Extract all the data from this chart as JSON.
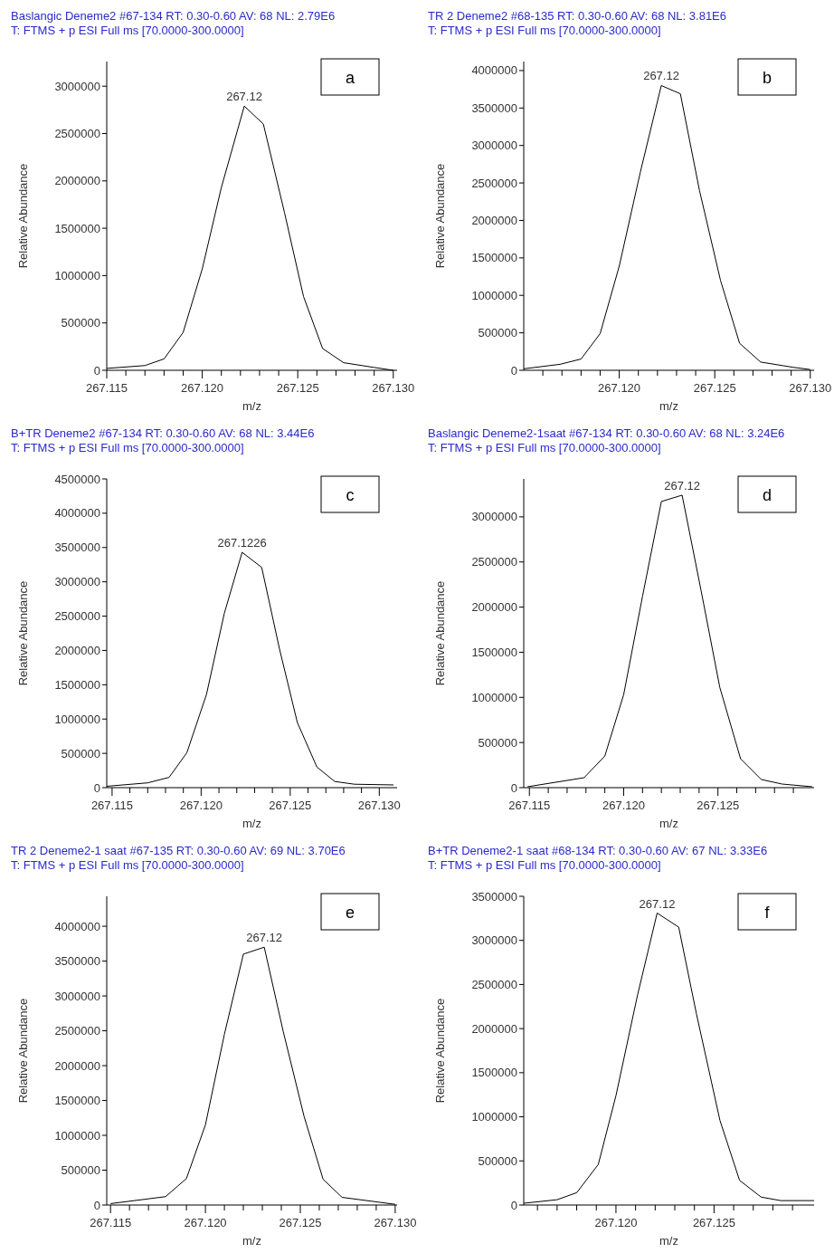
{
  "chart_data": [
    {
      "type": "line",
      "title": "Baslangic Deneme2 #67-134   RT:  0.30-0.60   AV:  68   NL:  2.79E6",
      "subtitle": "T:  FTMS + p ESI Full ms [70.0000-300.0000]",
      "xlabel": "m/z",
      "ylabel": "Relative Abundance",
      "xlim": [
        267.115,
        267.1302
      ],
      "ylim": [
        0,
        3260000
      ],
      "xticks": [
        {
          "value": 267.115,
          "label": "267.115"
        },
        {
          "value": 267.116,
          "label": null
        },
        {
          "value": 267.117,
          "label": null
        },
        {
          "value": 267.118,
          "label": null
        },
        {
          "value": 267.119,
          "label": null
        },
        {
          "value": 267.12,
          "label": "267.120"
        },
        {
          "value": 267.121,
          "label": null
        },
        {
          "value": 267.122,
          "label": null
        },
        {
          "value": 267.123,
          "label": null
        },
        {
          "value": 267.124,
          "label": null
        },
        {
          "value": 267.125,
          "label": "267.125"
        },
        {
          "value": 267.126,
          "label": null
        },
        {
          "value": 267.127,
          "label": null
        },
        {
          "value": 267.128,
          "label": null
        },
        {
          "value": 267.129,
          "label": null
        },
        {
          "value": 267.13,
          "label": "267.130"
        }
      ],
      "yticks": [
        0,
        500000,
        1000000,
        1500000,
        2000000,
        2500000,
        3000000
      ],
      "x": [
        267.115,
        267.117,
        267.118,
        267.119,
        267.12,
        267.121,
        267.1222,
        267.1232,
        267.1243,
        267.1253,
        267.1263,
        267.1274,
        267.129,
        267.13
      ],
      "series": [
        {
          "color": "#000000",
          "values": [
            20000,
            50000,
            120000,
            400000,
            1070000,
            1930000,
            2790000,
            2600000,
            1670000,
            780000,
            230000,
            80000,
            30000,
            0
          ]
        }
      ],
      "annotations": [
        {
          "text": "267.12",
          "x": 267.1222,
          "y": 2790000
        },
        "a"
      ]
    },
    {
      "type": "line",
      "title": "TR 2 Deneme2 #68-135   RT:  0.30-0.60   AV:  68   NL:  3.81E6",
      "subtitle": "T:  FTMS + p ESI Full ms [70.0000-300.0000]",
      "xlabel": "m/z",
      "ylabel": "Relative Abundance",
      "xlim": [
        267.115,
        267.1302
      ],
      "ylim": [
        0,
        4120000
      ],
      "xticks": [
        {
          "value": 267.116,
          "label": null
        },
        {
          "value": 267.117,
          "label": null
        },
        {
          "value": 267.118,
          "label": null
        },
        {
          "value": 267.119,
          "label": null
        },
        {
          "value": 267.12,
          "label": "267.120"
        },
        {
          "value": 267.121,
          "label": null
        },
        {
          "value": 267.122,
          "label": null
        },
        {
          "value": 267.123,
          "label": null
        },
        {
          "value": 267.124,
          "label": null
        },
        {
          "value": 267.125,
          "label": "267.125"
        },
        {
          "value": 267.126,
          "label": null
        },
        {
          "value": 267.127,
          "label": null
        },
        {
          "value": 267.128,
          "label": null
        },
        {
          "value": 267.129,
          "label": null
        },
        {
          "value": 267.13,
          "label": "267.130"
        }
      ],
      "yticks": [
        0,
        500000,
        1000000,
        1500000,
        2000000,
        2500000,
        3000000,
        3500000,
        4000000
      ],
      "x": [
        267.115,
        267.1169,
        267.118,
        267.119,
        267.12,
        267.1211,
        267.1222,
        267.1232,
        267.1242,
        267.1253,
        267.1263,
        267.1274,
        267.1291,
        267.13
      ],
      "series": [
        {
          "color": "#000000",
          "values": [
            20000,
            80000,
            150000,
            490000,
            1390000,
            2640000,
            3800000,
            3690000,
            2400000,
            1200000,
            360000,
            110000,
            40000,
            10000
          ]
        }
      ],
      "annotations": [
        {
          "text": "267.12",
          "x": 267.1222,
          "y": 3800000
        },
        "b"
      ]
    },
    {
      "type": "line",
      "title": "B+TR Deneme2 #67-134   RT:  0.30-0.60   AV:  68   NL:  3.44E6",
      "subtitle": "T:  FTMS + p ESI Full ms [70.0000-300.0000]",
      "xlabel": "m/z",
      "ylabel": "Relative Abundance",
      "xlim": [
        267.1147,
        267.131
      ],
      "ylim": [
        0,
        4500000
      ],
      "xticks": [
        {
          "value": 267.115,
          "label": "267.115"
        },
        {
          "value": 267.116,
          "label": null
        },
        {
          "value": 267.117,
          "label": null
        },
        {
          "value": 267.118,
          "label": null
        },
        {
          "value": 267.119,
          "label": null
        },
        {
          "value": 267.12,
          "label": "267.120"
        },
        {
          "value": 267.121,
          "label": null
        },
        {
          "value": 267.122,
          "label": null
        },
        {
          "value": 267.123,
          "label": null
        },
        {
          "value": 267.124,
          "label": null
        },
        {
          "value": 267.125,
          "label": "267.125"
        },
        {
          "value": 267.126,
          "label": null
        },
        {
          "value": 267.127,
          "label": null
        },
        {
          "value": 267.128,
          "label": null
        },
        {
          "value": 267.129,
          "label": null
        },
        {
          "value": 267.13,
          "label": "267.130"
        }
      ],
      "yticks": [
        0,
        500000,
        1000000,
        1500000,
        2000000,
        2500000,
        3000000,
        3500000,
        4000000,
        4500000
      ],
      "x": [
        267.1147,
        267.117,
        267.1182,
        267.1192,
        267.1203,
        267.1213,
        267.1223,
        267.1234,
        267.1244,
        267.1254,
        267.1265,
        267.1275,
        267.1286,
        267.1308
      ],
      "series": [
        {
          "color": "#000000",
          "values": [
            20000,
            70000,
            150000,
            510000,
            1360000,
            2540000,
            3430000,
            3210000,
            2020000,
            950000,
            300000,
            90000,
            50000,
            40000
          ]
        }
      ],
      "annotations": [
        {
          "text": "267.1226",
          "x": 267.1223,
          "y": 3430000
        },
        "c"
      ]
    },
    {
      "type": "line",
      "title": "Baslangic Deneme2-1saat #67-134   RT:  0.30-0.60   AV:  68   NL:  3.24E6",
      "subtitle": "T:  FTMS + p ESI Full ms [70.0000-300.0000]",
      "xlabel": "m/z",
      "ylabel": "Relative Abundance",
      "xlim": [
        267.1147,
        267.1301
      ],
      "ylim": [
        0,
        3420000
      ],
      "xticks": [
        {
          "value": 267.115,
          "label": "267.115"
        },
        {
          "value": 267.116,
          "label": null
        },
        {
          "value": 267.117,
          "label": null
        },
        {
          "value": 267.118,
          "label": null
        },
        {
          "value": 267.119,
          "label": null
        },
        {
          "value": 267.12,
          "label": "267.120"
        },
        {
          "value": 267.121,
          "label": null
        },
        {
          "value": 267.122,
          "label": null
        },
        {
          "value": 267.123,
          "label": null
        },
        {
          "value": 267.124,
          "label": null
        },
        {
          "value": 267.125,
          "label": "267.125"
        },
        {
          "value": 267.126,
          "label": null
        },
        {
          "value": 267.127,
          "label": null
        },
        {
          "value": 267.128,
          "label": null
        },
        {
          "value": 267.129,
          "label": null
        }
      ],
      "yticks": [
        0,
        500000,
        1000000,
        1500000,
        2000000,
        2500000,
        3000000
      ],
      "x": [
        267.1149,
        267.1179,
        267.119,
        267.12,
        267.121,
        267.122,
        267.1231,
        267.1241,
        267.1251,
        267.1262,
        267.1273,
        267.1284,
        267.13
      ],
      "series": [
        {
          "color": "#000000",
          "values": [
            10000,
            110000,
            350000,
            1030000,
            2120000,
            3170000,
            3240000,
            2190000,
            1110000,
            320000,
            90000,
            40000,
            10000
          ]
        }
      ],
      "annotations": [
        {
          "text": "267.12",
          "x": 267.1231,
          "y": 3240000
        },
        "d"
      ]
    },
    {
      "type": "line",
      "title": "TR 2 Deneme2-1 saat #67-135   RT:  0.30-0.60   AV:  69   NL:  3.70E6",
      "subtitle": "T:  FTMS + p ESI Full ms [70.0000-300.0000]",
      "xlabel": "m/z",
      "ylabel": "Relative Abundance",
      "xlim": [
        267.1148,
        267.1301
      ],
      "ylim": [
        0,
        4430000
      ],
      "xticks": [
        {
          "value": 267.115,
          "label": "267.115"
        },
        {
          "value": 267.116,
          "label": null
        },
        {
          "value": 267.117,
          "label": null
        },
        {
          "value": 267.118,
          "label": null
        },
        {
          "value": 267.119,
          "label": null
        },
        {
          "value": 267.12,
          "label": "267.120"
        },
        {
          "value": 267.121,
          "label": null
        },
        {
          "value": 267.122,
          "label": null
        },
        {
          "value": 267.123,
          "label": null
        },
        {
          "value": 267.124,
          "label": null
        },
        {
          "value": 267.125,
          "label": "267.125"
        },
        {
          "value": 267.126,
          "label": null
        },
        {
          "value": 267.127,
          "label": null
        },
        {
          "value": 267.128,
          "label": null
        },
        {
          "value": 267.129,
          "label": null
        },
        {
          "value": 267.13,
          "label": "267.130"
        }
      ],
      "yticks": [
        0,
        500000,
        1000000,
        1500000,
        2000000,
        2500000,
        3000000,
        3500000,
        4000000
      ],
      "x": [
        267.115,
        267.1179,
        267.119,
        267.12,
        267.121,
        267.122,
        267.1231,
        267.1241,
        267.1252,
        267.1262,
        267.1272,
        267.13
      ],
      "series": [
        {
          "color": "#000000",
          "values": [
            20000,
            120000,
            380000,
            1150000,
            2450000,
            3600000,
            3700000,
            2490000,
            1270000,
            370000,
            110000,
            10000
          ]
        }
      ],
      "annotations": [
        {
          "text": "267.12",
          "x": 267.1231,
          "y": 3700000
        },
        "e"
      ]
    },
    {
      "type": "line",
      "title": "B+TR Deneme2-1 saat #68-134   RT:  0.30-0.60   AV:  67   NL:  3.33E6",
      "subtitle": "T:  FTMS + p ESI Full ms [70.0000-300.0000]",
      "xlabel": "m/z",
      "ylabel": "Relative Abundance",
      "xlim": [
        267.1153,
        267.1301
      ],
      "ylim": [
        0,
        3500000
      ],
      "xticks": [
        {
          "value": 267.116,
          "label": null
        },
        {
          "value": 267.117,
          "label": null
        },
        {
          "value": 267.118,
          "label": null
        },
        {
          "value": 267.119,
          "label": null
        },
        {
          "value": 267.12,
          "label": "267.120"
        },
        {
          "value": 267.121,
          "label": null
        },
        {
          "value": 267.122,
          "label": null
        },
        {
          "value": 267.123,
          "label": null
        },
        {
          "value": 267.124,
          "label": null
        },
        {
          "value": 267.125,
          "label": "267.125"
        },
        {
          "value": 267.126,
          "label": null
        },
        {
          "value": 267.127,
          "label": null
        },
        {
          "value": 267.128,
          "label": null
        },
        {
          "value": 267.129,
          "label": null
        }
      ],
      "yticks": [
        0,
        500000,
        1000000,
        1500000,
        2000000,
        2500000,
        3000000,
        3500000
      ],
      "x": [
        267.1153,
        267.117,
        267.118,
        267.1191,
        267.12,
        267.1211,
        267.1221,
        267.1232,
        267.1241,
        267.1253,
        267.1263,
        267.1274,
        267.1284,
        267.1301
      ],
      "series": [
        {
          "color": "#000000",
          "values": [
            20000,
            60000,
            140000,
            460000,
            1240000,
            2380000,
            3310000,
            3150000,
            2170000,
            960000,
            280000,
            90000,
            50000,
            50000
          ]
        }
      ],
      "annotations": [
        {
          "text": "267.12",
          "x": 267.1221,
          "y": 3310000
        },
        "f"
      ]
    }
  ]
}
